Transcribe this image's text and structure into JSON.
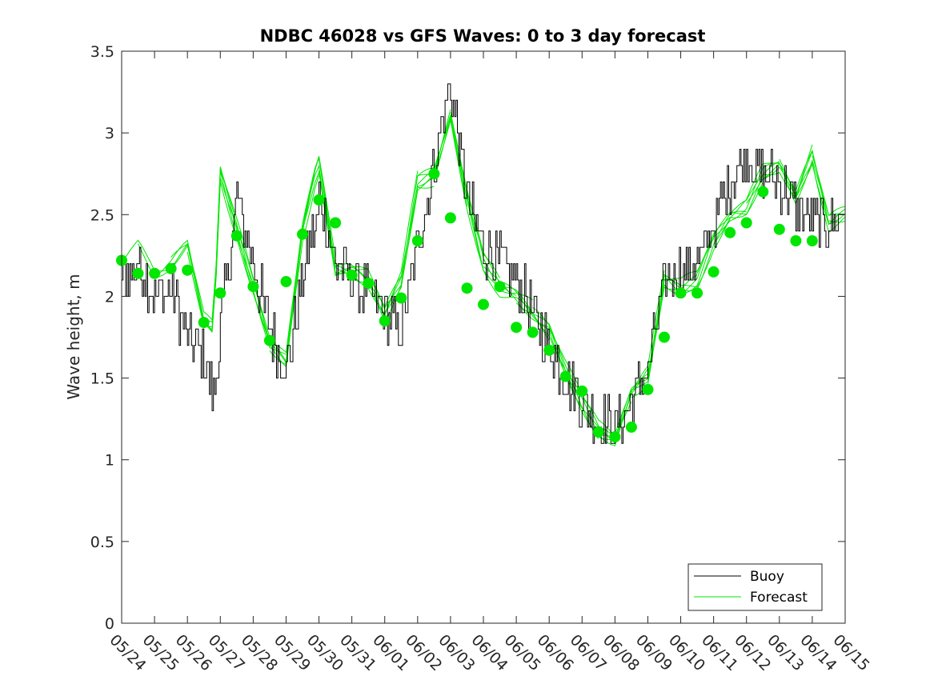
{
  "chart_data": {
    "type": "line",
    "title": "NDBC 46028 vs GFS Waves: 0 to 3 day forecast",
    "xlabel": "",
    "ylabel": "Wave height, m",
    "xlim": [
      "05/24",
      "06/15"
    ],
    "ylim": [
      0,
      3.5
    ],
    "x_ticks": [
      "05/24",
      "05/25",
      "05/26",
      "05/27",
      "05/28",
      "05/29",
      "05/30",
      "05/31",
      "06/01",
      "06/02",
      "06/03",
      "06/04",
      "06/05",
      "06/06",
      "06/07",
      "06/08",
      "06/09",
      "06/10",
      "06/11",
      "06/12",
      "06/13",
      "06/14",
      "06/15"
    ],
    "y_ticks": [
      "0",
      "0.5",
      "1",
      "1.5",
      "2",
      "2.5",
      "3",
      "3.5"
    ],
    "grid": false,
    "legend": {
      "position": "bottom-right",
      "entries": [
        "Buoy",
        "Forecast"
      ]
    },
    "colors": {
      "buoy": "#000000",
      "forecast": "#00e600",
      "axis": "#262626"
    },
    "series": [
      {
        "name": "Buoy",
        "style": "line",
        "x_days_from_0524": [
          0,
          0.5,
          1,
          1.5,
          2,
          2.5,
          2.8,
          3,
          3.5,
          4,
          4.5,
          5,
          5.5,
          5.9,
          6,
          6.5,
          7,
          7.5,
          8,
          8.5,
          9,
          9.5,
          10,
          10.5,
          11,
          11.5,
          12,
          12.5,
          13,
          13.5,
          14,
          14.5,
          15,
          15.5,
          16,
          16.5,
          17,
          17.5,
          18,
          18.5,
          19,
          19.5,
          20,
          20.5,
          21,
          21.5,
          22
        ],
        "values": [
          2.1,
          2.2,
          2.0,
          2.05,
          1.75,
          1.65,
          1.35,
          1.8,
          2.6,
          2.2,
          1.8,
          1.55,
          2.1,
          2.45,
          2.6,
          2.2,
          2.1,
          2.0,
          1.9,
          1.8,
          2.3,
          2.8,
          3.3,
          2.6,
          2.3,
          2.2,
          2.1,
          1.9,
          1.7,
          1.5,
          1.35,
          1.25,
          1.2,
          1.35,
          1.55,
          2.1,
          2.15,
          2.2,
          2.45,
          2.7,
          2.85,
          2.75,
          2.7,
          2.55,
          2.45,
          2.45,
          2.5
        ]
      },
      {
        "name": "Forecast",
        "style": "ensemble-lines",
        "x_days_from_0524": [
          0,
          0.5,
          1,
          1.5,
          2,
          2.5,
          2.8,
          3,
          3.5,
          4,
          4.5,
          5,
          5.5,
          5.9,
          6,
          6.5,
          7,
          7.5,
          8,
          8.5,
          9,
          9.5,
          10,
          10.5,
          11,
          11.5,
          12,
          12.5,
          13,
          13.5,
          14,
          14.5,
          15,
          15.5,
          16,
          16.5,
          17,
          17.5,
          18,
          18.5,
          19,
          19.5,
          20,
          20.5,
          21,
          21.5,
          22
        ],
        "values": [
          2.2,
          2.3,
          2.15,
          2.2,
          2.3,
          1.85,
          1.8,
          2.75,
          2.4,
          2.05,
          1.7,
          1.6,
          2.4,
          2.75,
          2.8,
          2.15,
          2.15,
          2.1,
          1.9,
          2.1,
          2.7,
          2.75,
          3.1,
          2.6,
          2.2,
          2.05,
          2.0,
          1.9,
          1.8,
          1.55,
          1.35,
          1.18,
          1.12,
          1.4,
          1.5,
          2.1,
          2.05,
          2.1,
          2.35,
          2.5,
          2.55,
          2.75,
          2.8,
          2.6,
          2.85,
          2.45,
          2.5
        ]
      },
      {
        "name": "Forecast markers",
        "style": "markers",
        "x_days_from_0524": [
          0,
          0.5,
          1,
          1.5,
          2,
          2.5,
          3,
          3.5,
          4,
          4.5,
          5,
          5.5,
          6,
          6.5,
          7,
          7.5,
          8,
          8.5,
          9,
          9.5,
          10,
          10.5,
          11,
          11.5,
          12,
          12.5,
          13,
          13.5,
          14,
          14.5,
          15,
          15.5,
          16,
          16.5,
          17,
          17.5,
          18,
          18.5,
          19,
          19.5,
          20,
          20.5,
          21
        ],
        "values": [
          2.22,
          2.14,
          2.14,
          2.17,
          2.16,
          1.84,
          2.02,
          2.37,
          2.06,
          1.73,
          2.09,
          2.38,
          2.59,
          2.45,
          2.13,
          2.08,
          1.85,
          1.99,
          2.34,
          2.75,
          2.48,
          2.05,
          1.95,
          2.06,
          1.81,
          1.78,
          1.67,
          1.51,
          1.42,
          1.17,
          1.14,
          1.2,
          1.43,
          1.75,
          2.02,
          2.02,
          2.15,
          2.39,
          2.45,
          2.64,
          2.41,
          2.34,
          2.34
        ]
      }
    ]
  }
}
